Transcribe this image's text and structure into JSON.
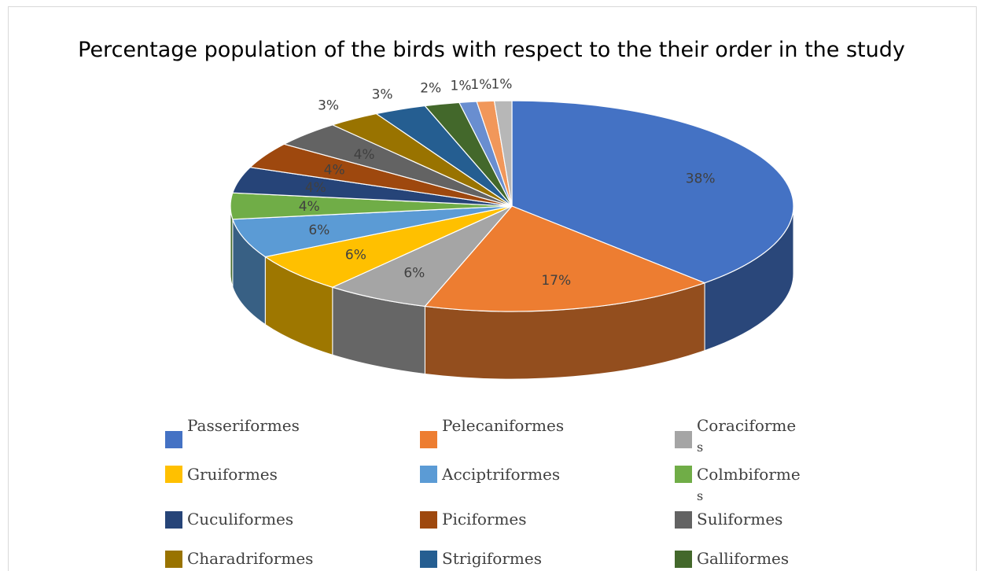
{
  "chart_data": {
    "type": "pie",
    "title": "Percentage population of the birds with respect to the their order in the study",
    "legend_position": "bottom",
    "categories": [
      "Passeriformes",
      "Pelecaniformes",
      "Coraciformes",
      "Gruiformes",
      "Acciptriformes",
      "Colmbiformes",
      "Cuculiformes",
      "Piciformes",
      "Suliformes",
      "Charadriformes",
      "Strigiformes",
      "Galliformes",
      "",
      "",
      ""
    ],
    "values": [
      38,
      17,
      6,
      6,
      6,
      4,
      4,
      4,
      4,
      3,
      3,
      2,
      1,
      1,
      1
    ],
    "data_labels": [
      "38%",
      "17%",
      "6%",
      "6%",
      "6%",
      "4%",
      "4%",
      "4%",
      "4%",
      "3%",
      "3%",
      "2%",
      "1%",
      "1%",
      "1%"
    ],
    "colors": [
      "#4472C4",
      "#ED7D31",
      "#A5A5A5",
      "#FFC000",
      "#5B9BD5",
      "#70AD47",
      "#264478",
      "#9E480E",
      "#636363",
      "#997300",
      "#255E91",
      "#43682B",
      "#698ED0",
      "#F1975A",
      "#B7B7B7"
    ],
    "legend": [
      {
        "label": "Passeriformes",
        "color": "#4472C4"
      },
      {
        "label": "Pelecaniformes",
        "color": "#ED7D31"
      },
      {
        "label": "Coraciforme\ns",
        "color": "#A5A5A5"
      },
      {
        "label": "Gruiformes",
        "color": "#FFC000"
      },
      {
        "label": "Acciptriformes",
        "color": "#5B9BD5"
      },
      {
        "label": "Colmbiforme\ns",
        "color": "#70AD47"
      },
      {
        "label": "Cuculiformes",
        "color": "#264478"
      },
      {
        "label": "Piciformes",
        "color": "#9E480E"
      },
      {
        "label": "Suliformes",
        "color": "#636363"
      },
      {
        "label": "Charadriformes",
        "color": "#997300"
      },
      {
        "label": "Strigiformes",
        "color": "#255E91"
      },
      {
        "label": "Galliformes",
        "color": "#43682B"
      }
    ]
  }
}
